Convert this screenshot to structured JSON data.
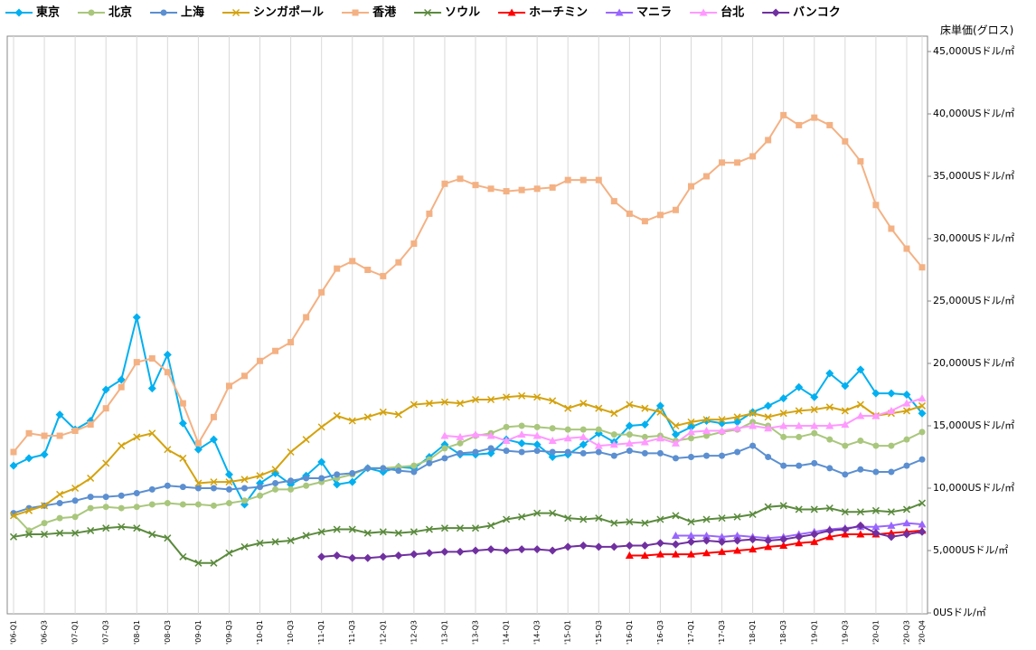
{
  "chart_data": {
    "type": "line",
    "y_axis_label": "床単価(グロス)",
    "categories": [
      "'06-Q1",
      null,
      "'06-Q3",
      null,
      "'07-Q1",
      null,
      "'07-Q3",
      null,
      "'08-Q1",
      null,
      "'08-Q3",
      null,
      "'09-Q1",
      null,
      "'09-Q3",
      null,
      "'10-Q1",
      null,
      "'10-Q3",
      null,
      "'11-Q1",
      null,
      "'11-Q3",
      null,
      "'12-Q1",
      null,
      "'12-Q3",
      null,
      "'13-Q1",
      null,
      "'13-Q3",
      null,
      "'14-Q1",
      null,
      "'14-Q3",
      null,
      "'15-Q1",
      null,
      "'15-Q3",
      null,
      "'16-Q1",
      null,
      "'16-Q3",
      null,
      "'17-Q1",
      null,
      "'17-Q3",
      null,
      "'18-Q1",
      null,
      "'18-Q3",
      null,
      "'19-Q1",
      null,
      "'19-Q3",
      null,
      "'20-Q1",
      null,
      "'20-Q3",
      "'20-Q4"
    ],
    "ylim": [
      0,
      45000
    ],
    "yticks": [
      {
        "value": 0,
        "label": "0USドル/㎡"
      },
      {
        "value": 5000,
        "label": "5,000USドル/㎡"
      },
      {
        "value": 10000,
        "label": "10,000USドル/㎡"
      },
      {
        "value": 15000,
        "label": "15,000USドル/㎡"
      },
      {
        "value": 20000,
        "label": "20,000USドル/㎡"
      },
      {
        "value": 25000,
        "label": "25,000USドル/㎡"
      },
      {
        "value": 30000,
        "label": "30,000USドル/㎡"
      },
      {
        "value": 35000,
        "label": "35,000USドル/㎡"
      },
      {
        "value": 40000,
        "label": "40,000USドル/㎡"
      },
      {
        "value": 45000,
        "label": "45,000USドル/㎡"
      }
    ],
    "grid": true,
    "legend": "top",
    "series": [
      {
        "name": "東京",
        "color": "#00b0f0",
        "marker": "diamond",
        "values": [
          11800,
          12400,
          12700,
          15900,
          14700,
          15400,
          17900,
          18700,
          23700,
          18000,
          20700,
          15200,
          13100,
          13900,
          11100,
          8700,
          10400,
          11200,
          10300,
          11000,
          12100,
          10300,
          10500,
          11600,
          11300,
          11700,
          11600,
          12500,
          13500,
          12700,
          12700,
          12800,
          13900,
          13600,
          13500,
          12500,
          12700,
          13500,
          14400,
          13700,
          15000,
          15100,
          16600,
          14300,
          14900,
          15400,
          15200,
          15300,
          16100,
          16600,
          17200,
          18100,
          17300,
          19200,
          18200,
          19500,
          17600,
          17600,
          17500,
          16000
        ]
      },
      {
        "name": "北京",
        "color": "#a9c77c",
        "marker": "circle",
        "values": [
          7900,
          6600,
          7200,
          7600,
          7700,
          8400,
          8500,
          8400,
          8500,
          8700,
          8800,
          8700,
          8700,
          8600,
          8800,
          9000,
          9400,
          9900,
          9900,
          10200,
          10500,
          10800,
          11100,
          11600,
          11600,
          11700,
          11800,
          12300,
          13200,
          13600,
          14200,
          14400,
          14900,
          15000,
          14900,
          14800,
          14700,
          14700,
          14700,
          14300,
          14300,
          14100,
          14200,
          13800,
          14000,
          14200,
          14500,
          14700,
          15300,
          15000,
          14100,
          14100,
          14400,
          13900,
          13400,
          13800,
          13400,
          13400,
          13900,
          14500
        ]
      },
      {
        "name": "上海",
        "color": "#5b8fd1",
        "marker": "circle",
        "values": [
          8000,
          8400,
          8600,
          8800,
          9000,
          9300,
          9300,
          9400,
          9600,
          9900,
          10200,
          10100,
          10000,
          10000,
          9900,
          10000,
          10100,
          10400,
          10600,
          10800,
          10800,
          11100,
          11200,
          11600,
          11600,
          11400,
          11300,
          12000,
          12400,
          12800,
          12900,
          13200,
          13000,
          12900,
          13000,
          12900,
          12900,
          12800,
          12900,
          12600,
          13000,
          12800,
          12800,
          12400,
          12500,
          12600,
          12600,
          12900,
          13400,
          12500,
          11800,
          11800,
          12000,
          11600,
          11100,
          11500,
          11300,
          11300,
          11800,
          12300
        ]
      },
      {
        "name": "シンガポール",
        "color": "#d4a20c",
        "marker": "x",
        "values": [
          7800,
          8200,
          8600,
          9500,
          10000,
          10800,
          12000,
          13400,
          14100,
          14400,
          13100,
          12400,
          10400,
          10500,
          10500,
          10700,
          11000,
          11500,
          12900,
          13900,
          14900,
          15800,
          15400,
          15700,
          16100,
          15900,
          16700,
          16800,
          16900,
          16800,
          17100,
          17100,
          17300,
          17400,
          17300,
          17000,
          16400,
          16800,
          16400,
          16000,
          16700,
          16400,
          16100,
          15000,
          15300,
          15500,
          15500,
          15700,
          16000,
          15700,
          16000,
          16200,
          16300,
          16500,
          16200,
          16700,
          15800,
          16000,
          16200,
          16600
        ]
      },
      {
        "name": "香港",
        "color": "#f4b183",
        "marker": "square",
        "values": [
          12900,
          14400,
          14200,
          14200,
          14600,
          15100,
          16400,
          18100,
          20100,
          20400,
          19300,
          16800,
          13600,
          15700,
          18200,
          19000,
          20200,
          21000,
          21700,
          23700,
          25700,
          27600,
          28200,
          27500,
          27000,
          28100,
          29600,
          32000,
          34400,
          34800,
          34300,
          34000,
          33800,
          33900,
          34000,
          34100,
          34700,
          34700,
          34700,
          33000,
          32000,
          31400,
          31900,
          32300,
          34200,
          35000,
          36100,
          36100,
          36600,
          37900,
          39900,
          39100,
          39700,
          39100,
          37800,
          36200,
          32700,
          30800,
          29200,
          27700
        ]
      },
      {
        "name": "ソウル",
        "color": "#5a8a3c",
        "marker": "x",
        "values": [
          6100,
          6300,
          6300,
          6400,
          6400,
          6600,
          6800,
          6900,
          6800,
          6300,
          6000,
          4500,
          4000,
          4000,
          4800,
          5300,
          5600,
          5700,
          5800,
          6200,
          6500,
          6700,
          6700,
          6400,
          6500,
          6400,
          6500,
          6700,
          6800,
          6800,
          6800,
          7000,
          7500,
          7700,
          8000,
          8000,
          7600,
          7500,
          7600,
          7200,
          7300,
          7200,
          7500,
          7800,
          7300,
          7500,
          7600,
          7700,
          7900,
          8500,
          8600,
          8300,
          8300,
          8400,
          8100,
          8100,
          8200,
          8100,
          8300,
          8800
        ]
      },
      {
        "name": "ホーチミン",
        "color": "#ff0000",
        "marker": "triangle",
        "values": [
          null,
          null,
          null,
          null,
          null,
          null,
          null,
          null,
          null,
          null,
          null,
          null,
          null,
          null,
          null,
          null,
          null,
          null,
          null,
          null,
          null,
          null,
          null,
          null,
          null,
          null,
          null,
          null,
          null,
          null,
          null,
          null,
          null,
          null,
          null,
          null,
          null,
          null,
          null,
          null,
          4600,
          4600,
          4700,
          4700,
          4700,
          4800,
          4900,
          5000,
          5100,
          5300,
          5400,
          5600,
          5700,
          6100,
          6300,
          6300,
          6300,
          6400,
          6500,
          6600
        ]
      },
      {
        "name": "マニラ",
        "color": "#9966ff",
        "marker": "triangle",
        "values": [
          null,
          null,
          null,
          null,
          null,
          null,
          null,
          null,
          null,
          null,
          null,
          null,
          null,
          null,
          null,
          null,
          null,
          null,
          null,
          null,
          null,
          null,
          null,
          null,
          null,
          null,
          null,
          null,
          null,
          null,
          null,
          null,
          null,
          null,
          null,
          null,
          null,
          null,
          null,
          null,
          null,
          null,
          null,
          6200,
          6200,
          6200,
          6100,
          6200,
          6100,
          6000,
          6100,
          6300,
          6500,
          6700,
          6800,
          6900,
          6900,
          7000,
          7200,
          7100
        ]
      },
      {
        "name": "台北",
        "color": "#ff99ff",
        "marker": "triangle",
        "values": [
          null,
          null,
          null,
          null,
          null,
          null,
          null,
          null,
          null,
          null,
          null,
          null,
          null,
          null,
          null,
          null,
          null,
          null,
          null,
          null,
          null,
          null,
          null,
          null,
          null,
          null,
          null,
          null,
          14200,
          14100,
          14300,
          14200,
          13800,
          14300,
          14200,
          13800,
          14000,
          14100,
          13400,
          13500,
          13600,
          13700,
          14000,
          13600,
          14500,
          14600,
          14600,
          14800,
          15000,
          14800,
          15000,
          15000,
          15000,
          15000,
          15100,
          15800,
          15800,
          16200,
          16800,
          17200
        ]
      },
      {
        "name": "バンコク",
        "color": "#7030a0",
        "marker": "diamond",
        "values": [
          null,
          null,
          null,
          null,
          null,
          null,
          null,
          null,
          null,
          null,
          null,
          null,
          null,
          null,
          null,
          null,
          null,
          null,
          null,
          null,
          4500,
          4600,
          4400,
          4400,
          4500,
          4600,
          4700,
          4800,
          4900,
          4900,
          5000,
          5100,
          5000,
          5100,
          5100,
          5000,
          5300,
          5400,
          5300,
          5300,
          5400,
          5400,
          5600,
          5500,
          5700,
          5800,
          5700,
          5800,
          5900,
          5800,
          5900,
          6100,
          6300,
          6600,
          6700,
          7000,
          6400,
          6100,
          6300,
          6500
        ]
      }
    ]
  }
}
